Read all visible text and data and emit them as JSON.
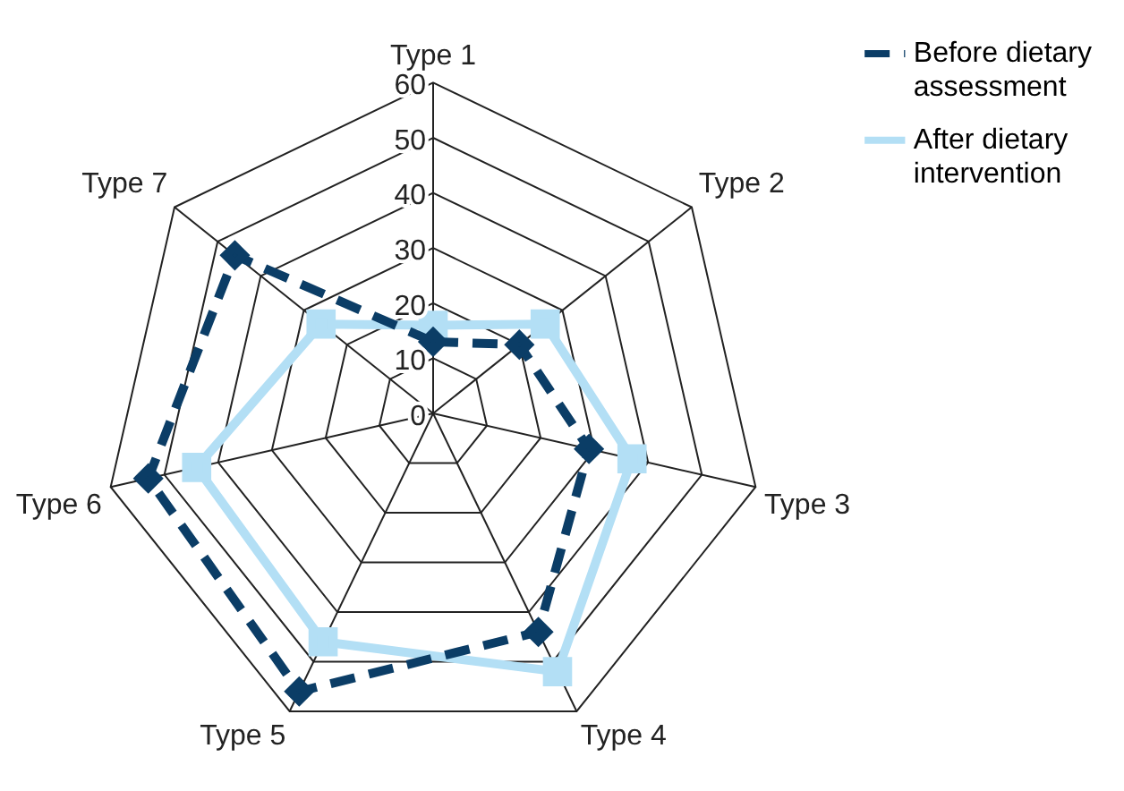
{
  "chart_data": {
    "type": "radar",
    "categories": [
      "Type 1",
      "Type 2",
      "Type 3",
      "Type 4",
      "Type 5",
      "Type 6",
      "Type 7"
    ],
    "series": [
      {
        "name": "Before dietary assessment",
        "color": "#0b3d66",
        "values": [
          13,
          20,
          29,
          44,
          56,
          53,
          46
        ],
        "marker": "diamond",
        "line_style": "dashed"
      },
      {
        "name": "After dietary intervention",
        "color": "#b3dff5",
        "values": [
          16,
          26,
          37,
          52,
          46,
          44,
          26
        ],
        "marker": "square",
        "line_style": "solid"
      }
    ],
    "ylim": [
      0,
      60
    ],
    "yticks": [
      0,
      10,
      20,
      30,
      40,
      50,
      60
    ],
    "grid": true,
    "legend": "top right"
  }
}
